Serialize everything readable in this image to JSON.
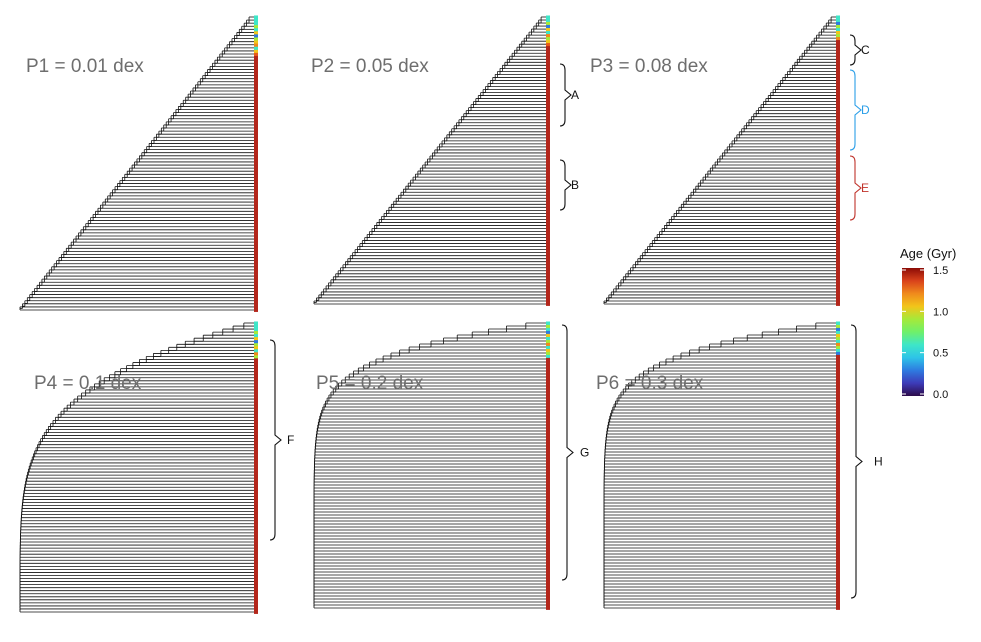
{
  "figure": {
    "panels": [
      {
        "id": "P1",
        "title": "P1 = 0.01 dex",
        "taper": "gradual",
        "cluster_brackets": [],
        "leaf_colors": [
          "#3ee6c8",
          "#3ee6c8",
          "#3ee6c8",
          "#a6e93a",
          "#3ee6c8",
          "#f2c51a",
          "#2e7be0",
          "#a6e93a",
          "#f2c51a",
          "#f08a1c",
          "#3ee6c8",
          "#f2c51a",
          "#e85a1a"
        ]
      },
      {
        "id": "P2",
        "title": "P2 = 0.05 dex",
        "taper": "gradual",
        "cluster_brackets": [
          {
            "label": "A",
            "color": "#111111"
          },
          {
            "label": "B",
            "color": "#111111"
          }
        ],
        "leaf_colors": [
          "#3ee6c8",
          "#3ee6c8",
          "#a6e93a",
          "#2e7be0",
          "#f2c51a",
          "#3ee6c8",
          "#f08a1c",
          "#a6e93a",
          "#f2c51a",
          "#e85a1a"
        ]
      },
      {
        "id": "P3",
        "title": "P3 = 0.08 dex",
        "taper": "gradual",
        "cluster_brackets": [
          {
            "label": "C",
            "color": "#111111"
          },
          {
            "label": "D",
            "color": "#2a9ee8"
          },
          {
            "label": "E",
            "color": "#c0332b"
          }
        ],
        "leaf_colors": [
          "#3ee6c8",
          "#3ee6c8",
          "#2e7be0",
          "#a6e93a",
          "#3ee6c8",
          "#f2c51a",
          "#a6e93a",
          "#f08a1c"
        ]
      },
      {
        "id": "P4",
        "title": "P4 = 0.1 dex",
        "taper": "steep",
        "cluster_brackets": [
          {
            "label": "F",
            "color": "#111111"
          }
        ],
        "leaf_colors": [
          "#3ee6c8",
          "#3ee6c8",
          "#3ee6c8",
          "#a6e93a",
          "#3ee6c8",
          "#f2c51a",
          "#2e7be0",
          "#a6e93a",
          "#f2c51a",
          "#3ee6c8",
          "#f08a1c",
          "#a6e93a"
        ]
      },
      {
        "id": "P5",
        "title": "P5 = 0.2 dex",
        "taper": "stepped",
        "cluster_brackets": [
          {
            "label": "G",
            "color": "#111111"
          }
        ],
        "leaf_colors": [
          "#3ee6c8",
          "#a6e93a",
          "#3ee6c8",
          "#2e7be0",
          "#f2c51a",
          "#3ee6c8",
          "#a6e93a",
          "#f08a1c",
          "#3ee6c8",
          "#f2c51a",
          "#a6e93a",
          "#3ee6c8"
        ]
      },
      {
        "id": "P6",
        "title": "P6 = 0.3 dex",
        "taper": "stepped",
        "cluster_brackets": [
          {
            "label": "H",
            "color": "#111111"
          }
        ],
        "leaf_colors": [
          "#3ee6c8",
          "#a6e93a",
          "#2e7be0",
          "#3ee6c8",
          "#f2c51a",
          "#a6e93a",
          "#3ee6c8",
          "#f08a1c",
          "#a6e93a",
          "#3ee6c8",
          "#2e7be0"
        ]
      }
    ],
    "colorbar": {
      "title": "Age (Gyr)",
      "ticks": [
        "1.5",
        "1.0",
        "0.5",
        "0.0"
      ],
      "min": 0.0,
      "max": 1.5,
      "stops": [
        "#2d0b4a",
        "#3d3bb8",
        "#2e7be0",
        "#2ec4e8",
        "#3ee6c8",
        "#6ff06a",
        "#a6e93a",
        "#f2c51a",
        "#f08a1c",
        "#d9421b",
        "#8c0b06"
      ]
    },
    "default_leaf_color": "#b3261b",
    "tree_line_color": "#111111"
  }
}
